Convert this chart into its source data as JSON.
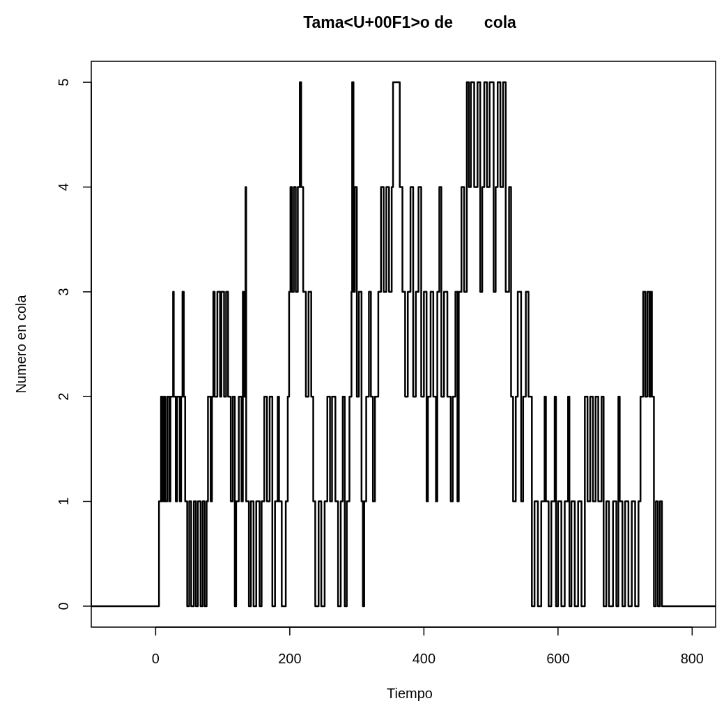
{
  "chart_data": {
    "type": "step",
    "title": "Tama<U+00F1>o de       cola",
    "xlabel": "Tiempo",
    "ylabel": "Numero en cola",
    "xlim": [
      -96,
      835
    ],
    "xticks": [
      0,
      200,
      400,
      600,
      800
    ],
    "ylim": [
      -0.2,
      5.2
    ],
    "yticks": [
      0,
      1,
      2,
      3,
      4,
      5
    ],
    "series": [
      {
        "color": "#000000",
        "x": [
          -96,
          5,
          8,
          10,
          12,
          14,
          17,
          20,
          22,
          26,
          27,
          30,
          32,
          36,
          38,
          40,
          42,
          44,
          47,
          50,
          53,
          57,
          60,
          63,
          67,
          70,
          73,
          76,
          78,
          82,
          84,
          86,
          88,
          92,
          96,
          98,
          102,
          105,
          108,
          112,
          115,
          118,
          120,
          124,
          128,
          130,
          132,
          134,
          135,
          139,
          142,
          146,
          150,
          155,
          158,
          162,
          166,
          170,
          174,
          178,
          182,
          184,
          188,
          194,
          197,
          199,
          201,
          203,
          206,
          209,
          212,
          215,
          217,
          220,
          224,
          228,
          232,
          235,
          238,
          243,
          247,
          252,
          256,
          260,
          263,
          268,
          272,
          276,
          279,
          282,
          285,
          289,
          292,
          293,
          295,
          297,
          300,
          303,
          307,
          309,
          311,
          314,
          318,
          321,
          324,
          327,
          332,
          336,
          340,
          344,
          348,
          352,
          354,
          364,
          368,
          372,
          376,
          380,
          384,
          388,
          392,
          396,
          400,
          404,
          406,
          410,
          414,
          418,
          420,
          423,
          426,
          430,
          435,
          440,
          443,
          447,
          450,
          452,
          456,
          460,
          464,
          467,
          470,
          475,
          480,
          484,
          487,
          490,
          494,
          498,
          504,
          507,
          510,
          514,
          518,
          522,
          527,
          530,
          533,
          537,
          540,
          545,
          548,
          552,
          556,
          561,
          565,
          570,
          575,
          580,
          582,
          586,
          590,
          595,
          597,
          600,
          605,
          610,
          615,
          617,
          620,
          625,
          630,
          635,
          640,
          644,
          648,
          652,
          656,
          660,
          665,
          668,
          672,
          676,
          682,
          687,
          690,
          692,
          696,
          700,
          705,
          710,
          715,
          720,
          723,
          727,
          730,
          733,
          736,
          738,
          740,
          743,
          746,
          749,
          752,
          755,
          835
        ],
        "values": [
          0,
          1,
          2,
          1,
          2,
          1,
          2,
          1,
          2,
          3,
          2,
          1,
          2,
          1,
          2,
          3,
          2,
          1,
          0,
          1,
          0,
          1,
          0,
          1,
          0,
          1,
          0,
          1,
          2,
          1,
          2,
          3,
          2,
          3,
          2,
          3,
          2,
          3,
          2,
          1,
          2,
          0,
          1,
          2,
          1,
          3,
          2,
          4,
          1,
          0,
          1,
          0,
          1,
          0,
          1,
          2,
          1,
          2,
          0,
          1,
          2,
          1,
          0,
          1,
          2,
          3,
          4,
          3,
          4,
          3,
          4,
          5,
          4,
          3,
          2,
          3,
          2,
          1,
          0,
          1,
          0,
          1,
          2,
          1,
          2,
          1,
          0,
          1,
          2,
          0,
          1,
          2,
          3,
          5,
          3,
          4,
          2,
          3,
          1,
          0,
          1,
          2,
          3,
          2,
          1,
          2,
          3,
          4,
          3,
          4,
          3,
          4,
          5,
          4,
          3,
          2,
          3,
          4,
          2,
          3,
          4,
          2,
          3,
          1,
          2,
          3,
          2,
          1,
          3,
          4,
          2,
          3,
          2,
          1,
          2,
          3,
          1,
          3,
          4,
          3,
          5,
          4,
          5,
          4,
          5,
          3,
          4,
          5,
          4,
          5,
          3,
          4,
          5,
          4,
          5,
          3,
          4,
          2,
          1,
          2,
          3,
          1,
          2,
          3,
          2,
          0,
          1,
          0,
          1,
          2,
          1,
          0,
          1,
          2,
          0,
          1,
          0,
          1,
          2,
          0,
          1,
          0,
          1,
          0,
          2,
          1,
          2,
          1,
          2,
          1,
          2,
          0,
          1,
          0,
          1,
          0,
          2,
          1,
          0,
          1,
          0,
          1,
          0,
          1,
          2,
          3,
          2,
          3,
          2,
          3,
          2,
          0,
          1,
          0,
          1,
          0,
          0
        ]
      }
    ]
  }
}
